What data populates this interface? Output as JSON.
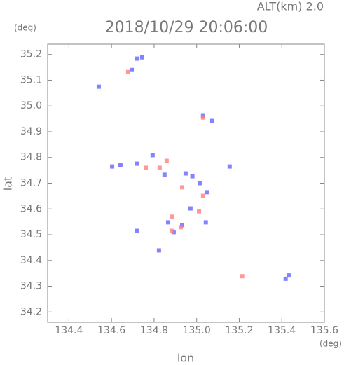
{
  "chart_data": {
    "type": "scatter",
    "title": "2018/10/29 20:06:00",
    "header": "ALT(km)  2.0",
    "y_unit": "(deg)",
    "x_unit": "(deg)",
    "xlabel": "lon",
    "ylabel": "lat",
    "xlim": [
      134.3,
      135.6
    ],
    "ylim": [
      34.16,
      35.24
    ],
    "xticks": [
      {
        "value": 134.4,
        "label": "134.4"
      },
      {
        "value": 134.6,
        "label": "134.6"
      },
      {
        "value": 134.8,
        "label": "134.8"
      },
      {
        "value": 135.0,
        "label": "135.0"
      },
      {
        "value": 135.2,
        "label": "135.2"
      },
      {
        "value": 135.4,
        "label": "135.4"
      },
      {
        "value": 135.6,
        "label": "135.6"
      }
    ],
    "yticks": [
      {
        "value": 34.2,
        "label": "34.2"
      },
      {
        "value": 34.3,
        "label": "34.3"
      },
      {
        "value": 34.4,
        "label": "34.4"
      },
      {
        "value": 34.5,
        "label": "34.5"
      },
      {
        "value": 34.6,
        "label": "34.6"
      },
      {
        "value": 34.7,
        "label": "34.7"
      },
      {
        "value": 34.8,
        "label": "34.8"
      },
      {
        "value": 34.9,
        "label": "34.9"
      },
      {
        "value": 35.0,
        "label": "35.0"
      },
      {
        "value": 35.1,
        "label": "35.1"
      },
      {
        "value": 35.2,
        "label": "35.2"
      }
    ],
    "series": [
      {
        "color": "#6464ff",
        "x": [
          134.744,
          134.718,
          134.695,
          134.54,
          135.03,
          135.073,
          134.603,
          134.642,
          134.718,
          134.793,
          134.849,
          134.948,
          134.98,
          135.014,
          135.047,
          134.971,
          134.866,
          134.892,
          134.932,
          134.721,
          134.823,
          135.043,
          135.155,
          135.432,
          135.418
        ],
        "values": [
          35.189,
          35.184,
          35.14,
          35.075,
          34.961,
          34.942,
          34.765,
          34.771,
          34.776,
          34.809,
          34.733,
          34.738,
          34.727,
          34.7,
          34.665,
          34.602,
          34.548,
          34.51,
          34.537,
          34.515,
          34.439,
          34.548,
          34.765,
          34.342,
          34.329
        ]
      },
      {
        "color": "#ff8080",
        "x": [
          134.678,
          134.826,
          134.859,
          134.932,
          135.03,
          135.011,
          134.925,
          134.882,
          134.885,
          135.214,
          134.761,
          135.03
        ],
        "values": [
          35.132,
          34.76,
          34.787,
          34.684,
          34.651,
          34.591,
          34.529,
          34.515,
          34.57,
          34.339,
          34.76,
          34.955
        ]
      }
    ]
  }
}
